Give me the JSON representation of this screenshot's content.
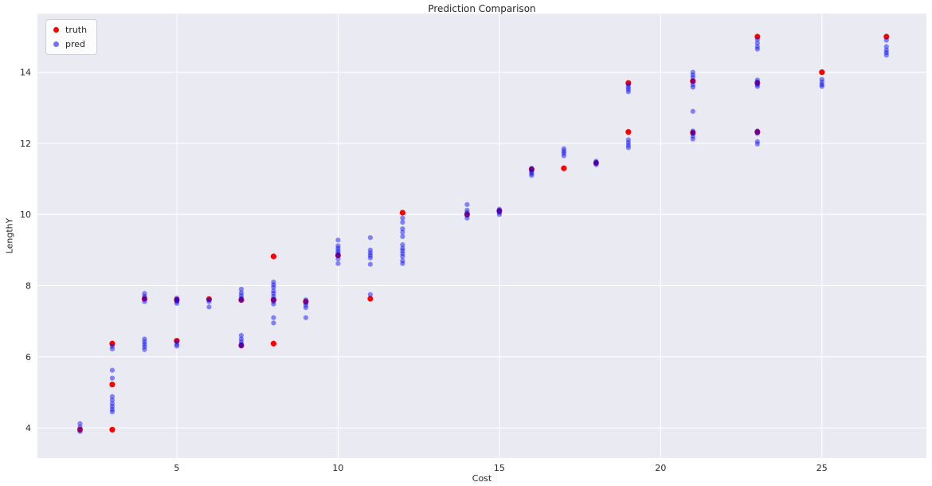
{
  "chart_data": {
    "type": "scatter",
    "title": "Prediction Comparison",
    "xlabel": "Cost",
    "ylabel": "LengthY",
    "xlim": [
      0.68,
      28.24
    ],
    "ylim": [
      3.15,
      15.65
    ],
    "xticks": [
      5,
      10,
      15,
      20,
      25
    ],
    "yticks": [
      4,
      6,
      8,
      10,
      12,
      14
    ],
    "grid": true,
    "plot_bg": "#eaeaf2",
    "grid_color": "#ffffff",
    "text_color": "#262626",
    "legend_position": "upper left",
    "series": [
      {
        "name": "truth",
        "color": "#ff0000",
        "opacity": 1,
        "size": 3.6,
        "points": [
          [
            2,
            3.95
          ],
          [
            3,
            6.37
          ],
          [
            3,
            5.22
          ],
          [
            3,
            3.95
          ],
          [
            4,
            7.63
          ],
          [
            5,
            7.6
          ],
          [
            5,
            6.45
          ],
          [
            6,
            7.62
          ],
          [
            7,
            7.6
          ],
          [
            7,
            6.32
          ],
          [
            8,
            8.82
          ],
          [
            8,
            7.6
          ],
          [
            8,
            6.37
          ],
          [
            9,
            7.55
          ],
          [
            10,
            8.85
          ],
          [
            11,
            7.63
          ],
          [
            12,
            10.05
          ],
          [
            14,
            10.0
          ],
          [
            15,
            10.1
          ],
          [
            16,
            11.27
          ],
          [
            17,
            11.3
          ],
          [
            18,
            11.45
          ],
          [
            19,
            13.7
          ],
          [
            19,
            12.32
          ],
          [
            21,
            13.75
          ],
          [
            21,
            12.3
          ],
          [
            23,
            15.0
          ],
          [
            23,
            13.7
          ],
          [
            23,
            12.32
          ],
          [
            25,
            14.0
          ],
          [
            27,
            15.0
          ]
        ]
      },
      {
        "name": "pred",
        "color": "#0000ff",
        "opacity": 0.45,
        "size": 3.1,
        "points": [
          [
            2,
            4.12
          ],
          [
            2,
            4.02
          ],
          [
            2,
            3.9
          ],
          [
            3,
            6.3
          ],
          [
            3,
            6.22
          ],
          [
            3,
            5.62
          ],
          [
            3,
            5.4
          ],
          [
            3,
            4.88
          ],
          [
            3,
            4.78
          ],
          [
            3,
            4.68
          ],
          [
            3,
            4.6
          ],
          [
            3,
            4.52
          ],
          [
            3,
            4.45
          ],
          [
            4,
            7.78
          ],
          [
            4,
            7.7
          ],
          [
            4,
            7.62
          ],
          [
            4,
            7.55
          ],
          [
            4,
            6.5
          ],
          [
            4,
            6.42
          ],
          [
            4,
            6.35
          ],
          [
            4,
            6.28
          ],
          [
            4,
            6.2
          ],
          [
            5,
            7.65
          ],
          [
            5,
            7.6
          ],
          [
            5,
            7.55
          ],
          [
            5,
            7.5
          ],
          [
            5,
            6.42
          ],
          [
            5,
            6.35
          ],
          [
            5,
            6.3
          ],
          [
            6,
            7.6
          ],
          [
            6,
            7.55
          ],
          [
            6,
            7.4
          ],
          [
            7,
            7.9
          ],
          [
            7,
            7.8
          ],
          [
            7,
            7.72
          ],
          [
            7,
            7.65
          ],
          [
            7,
            7.58
          ],
          [
            7,
            6.6
          ],
          [
            7,
            6.5
          ],
          [
            7,
            6.42
          ],
          [
            7,
            6.35
          ],
          [
            7,
            6.3
          ],
          [
            8,
            8.1
          ],
          [
            8,
            8.02
          ],
          [
            8,
            7.95
          ],
          [
            8,
            7.85
          ],
          [
            8,
            7.78
          ],
          [
            8,
            7.7
          ],
          [
            8,
            7.62
          ],
          [
            8,
            7.55
          ],
          [
            8,
            7.48
          ],
          [
            8,
            7.1
          ],
          [
            8,
            6.95
          ],
          [
            9,
            7.6
          ],
          [
            9,
            7.52
          ],
          [
            9,
            7.45
          ],
          [
            9,
            7.38
          ],
          [
            9,
            7.1
          ],
          [
            10,
            9.28
          ],
          [
            10,
            9.12
          ],
          [
            10,
            9.05
          ],
          [
            10,
            8.98
          ],
          [
            10,
            8.92
          ],
          [
            10,
            8.85
          ],
          [
            10,
            8.75
          ],
          [
            10,
            8.62
          ],
          [
            11,
            9.35
          ],
          [
            11,
            9.0
          ],
          [
            11,
            8.92
          ],
          [
            11,
            8.85
          ],
          [
            11,
            8.78
          ],
          [
            11,
            8.6
          ],
          [
            11,
            7.75
          ],
          [
            12,
            9.9
          ],
          [
            12,
            9.78
          ],
          [
            12,
            9.6
          ],
          [
            12,
            9.5
          ],
          [
            12,
            9.38
          ],
          [
            12,
            9.15
          ],
          [
            12,
            9.05
          ],
          [
            12,
            8.98
          ],
          [
            12,
            8.9
          ],
          [
            12,
            8.82
          ],
          [
            12,
            8.7
          ],
          [
            12,
            8.62
          ],
          [
            14,
            10.28
          ],
          [
            14,
            10.12
          ],
          [
            14,
            10.05
          ],
          [
            14,
            9.98
          ],
          [
            14,
            9.9
          ],
          [
            15,
            10.15
          ],
          [
            15,
            10.1
          ],
          [
            15,
            10.05
          ],
          [
            15,
            10.0
          ],
          [
            16,
            11.3
          ],
          [
            16,
            11.25
          ],
          [
            16,
            11.2
          ],
          [
            16,
            11.15
          ],
          [
            16,
            11.1
          ],
          [
            17,
            11.85
          ],
          [
            17,
            11.78
          ],
          [
            17,
            11.72
          ],
          [
            17,
            11.65
          ],
          [
            18,
            11.5
          ],
          [
            18,
            11.45
          ],
          [
            18,
            11.4
          ],
          [
            19,
            13.65
          ],
          [
            19,
            13.58
          ],
          [
            19,
            13.52
          ],
          [
            19,
            13.45
          ],
          [
            19,
            12.1
          ],
          [
            19,
            12.02
          ],
          [
            19,
            11.95
          ],
          [
            19,
            11.88
          ],
          [
            21,
            14.0
          ],
          [
            21,
            13.92
          ],
          [
            21,
            13.85
          ],
          [
            21,
            13.75
          ],
          [
            21,
            13.65
          ],
          [
            21,
            13.58
          ],
          [
            21,
            12.9
          ],
          [
            21,
            12.35
          ],
          [
            21,
            12.28
          ],
          [
            21,
            12.2
          ],
          [
            21,
            12.12
          ],
          [
            23,
            14.92
          ],
          [
            23,
            14.82
          ],
          [
            23,
            14.72
          ],
          [
            23,
            14.65
          ],
          [
            23,
            13.78
          ],
          [
            23,
            13.72
          ],
          [
            23,
            13.65
          ],
          [
            23,
            13.6
          ],
          [
            23,
            12.35
          ],
          [
            23,
            12.28
          ],
          [
            23,
            12.05
          ],
          [
            23,
            11.98
          ],
          [
            25,
            13.8
          ],
          [
            25,
            13.72
          ],
          [
            25,
            13.65
          ],
          [
            25,
            13.6
          ],
          [
            27,
            14.9
          ],
          [
            27,
            14.72
          ],
          [
            27,
            14.62
          ],
          [
            27,
            14.55
          ],
          [
            27,
            14.48
          ]
        ]
      }
    ]
  }
}
